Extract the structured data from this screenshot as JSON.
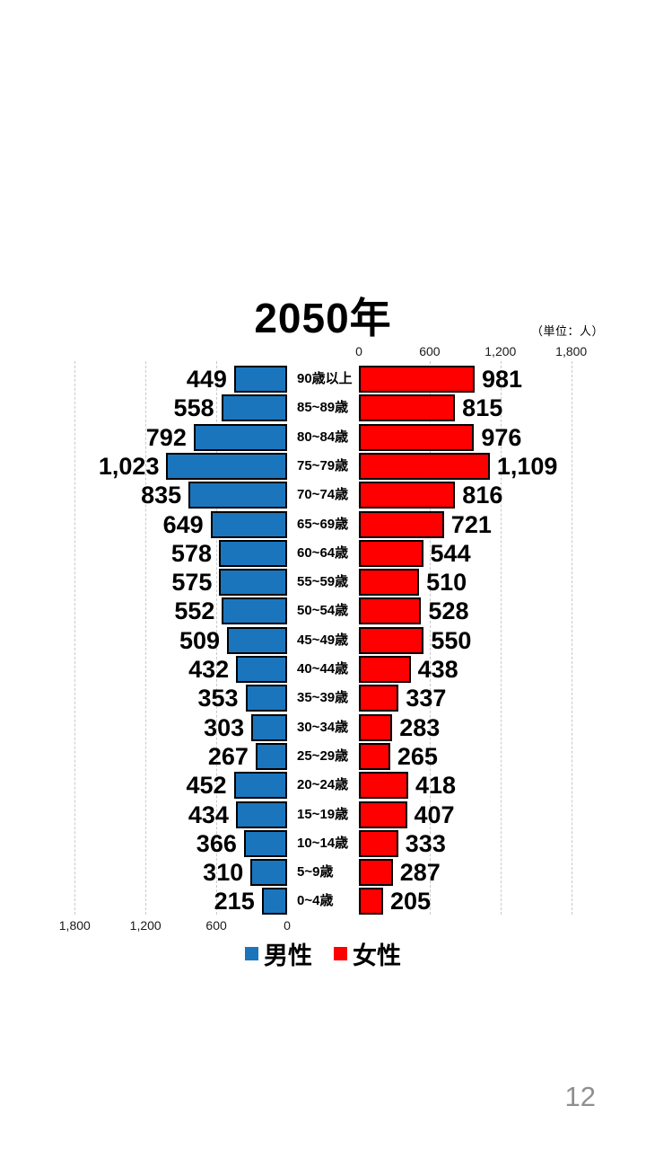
{
  "page": {
    "page_number": "12"
  },
  "chart_data": {
    "type": "bar",
    "variant": "population-pyramid",
    "title": "2050年",
    "unit_label": "（単位：人）",
    "categories": [
      "90歳以上",
      "85~89歳",
      "80~84歳",
      "75~79歳",
      "70~74歳",
      "65~69歳",
      "60~64歳",
      "55~59歳",
      "50~54歳",
      "45~49歳",
      "40~44歳",
      "35~39歳",
      "30~34歳",
      "25~29歳",
      "20~24歳",
      "15~19歳",
      "10~14歳",
      "5~9歳",
      "0~4歳"
    ],
    "series": [
      {
        "name": "男性",
        "side": "left",
        "color": "#1b75bc",
        "values": [
          449,
          558,
          792,
          1023,
          835,
          649,
          578,
          575,
          552,
          509,
          432,
          353,
          303,
          267,
          452,
          434,
          366,
          310,
          215
        ]
      },
      {
        "name": "女性",
        "side": "right",
        "color": "#ff0000",
        "values": [
          981,
          815,
          976,
          1109,
          816,
          721,
          544,
          510,
          528,
          550,
          438,
          337,
          283,
          265,
          418,
          407,
          333,
          287,
          205
        ]
      }
    ],
    "axis": {
      "ticks": [
        0,
        600,
        1200,
        1800
      ],
      "tick_labels": [
        "0",
        "600",
        "1,200",
        "1,800"
      ],
      "max": 1800,
      "gridlines": true,
      "top_axis_side": "right",
      "bottom_axis_side": "left"
    },
    "legend": {
      "position": "bottom",
      "items": [
        "男性",
        "女性"
      ]
    }
  }
}
